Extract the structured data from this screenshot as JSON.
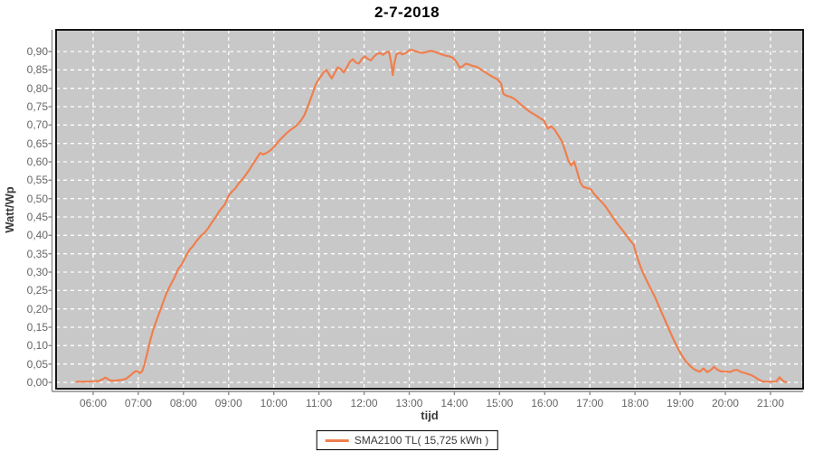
{
  "chart_data": {
    "type": "line",
    "title": "2-7-2018",
    "xlabel": "tijd",
    "ylabel": "Watt/Wp",
    "x_tick_labels": [
      "06:00",
      "07:00",
      "08:00",
      "09:00",
      "10:00",
      "11:00",
      "12:00",
      "13:00",
      "14:00",
      "15:00",
      "16:00",
      "17:00",
      "18:00",
      "19:00",
      "20:00",
      "21:00"
    ],
    "y_tick_labels": [
      "0,00",
      "0,05",
      "0,10",
      "0,15",
      "0,20",
      "0,25",
      "0,30",
      "0,35",
      "0,40",
      "0,45",
      "0,50",
      "0,55",
      "0,60",
      "0,65",
      "0,70",
      "0,75",
      "0,80",
      "0,85",
      "0,90"
    ],
    "xlim_hours": [
      5.179,
      21.723
    ],
    "ylim": [
      -0.0172,
      0.959
    ],
    "grid": {
      "style": "dashed",
      "horizontal": true,
      "vertical": true
    },
    "colors": {
      "plot_bg": "#C8C8C8",
      "grid": "#FFFFFF",
      "border": "#000000",
      "axis": "#8A8A8A",
      "tick_text": "#666666",
      "series": "#EF7F4E"
    },
    "legend": {
      "position": "bottom-center",
      "entries": [
        {
          "label": "SMA2100 TL( 15,725 kWh )",
          "color": "#EF7F4E"
        }
      ]
    },
    "series": [
      {
        "name": "SMA2100 TL( 15,725 kWh )",
        "color": "#EF7F4E",
        "points": [
          [
            "05:38",
            0.002
          ],
          [
            "05:48",
            0.002
          ],
          [
            "06:00",
            0.003
          ],
          [
            "06:08",
            0.004
          ],
          [
            "06:13",
            0.009
          ],
          [
            "06:16",
            0.013
          ],
          [
            "06:19",
            0.01
          ],
          [
            "06:23",
            0.005
          ],
          [
            "06:30",
            0.005
          ],
          [
            "06:38",
            0.007
          ],
          [
            "06:44",
            0.01
          ],
          [
            "06:50",
            0.02
          ],
          [
            "06:55",
            0.029
          ],
          [
            "06:59",
            0.031
          ],
          [
            "07:02",
            0.025
          ],
          [
            "07:05",
            0.03
          ],
          [
            "07:08",
            0.048
          ],
          [
            "07:12",
            0.08
          ],
          [
            "07:16",
            0.115
          ],
          [
            "07:20",
            0.145
          ],
          [
            "07:24",
            0.168
          ],
          [
            "07:28",
            0.19
          ],
          [
            "07:33",
            0.218
          ],
          [
            "07:38",
            0.245
          ],
          [
            "07:43",
            0.266
          ],
          [
            "07:48",
            0.285
          ],
          [
            "07:53",
            0.308
          ],
          [
            "07:58",
            0.322
          ],
          [
            "08:03",
            0.342
          ],
          [
            "08:08",
            0.36
          ],
          [
            "08:13",
            0.372
          ],
          [
            "08:18",
            0.386
          ],
          [
            "08:23",
            0.398
          ],
          [
            "08:28",
            0.407
          ],
          [
            "08:33",
            0.42
          ],
          [
            "08:38",
            0.436
          ],
          [
            "08:43",
            0.45
          ],
          [
            "08:47",
            0.464
          ],
          [
            "08:51",
            0.474
          ],
          [
            "08:55",
            0.484
          ],
          [
            "09:00",
            0.508
          ],
          [
            "09:05",
            0.52
          ],
          [
            "09:09",
            0.528
          ],
          [
            "09:13",
            0.54
          ],
          [
            "09:18",
            0.552
          ],
          [
            "09:23",
            0.565
          ],
          [
            "09:28",
            0.58
          ],
          [
            "09:33",
            0.596
          ],
          [
            "09:38",
            0.612
          ],
          [
            "09:42",
            0.624
          ],
          [
            "09:46",
            0.62
          ],
          [
            "09:51",
            0.625
          ],
          [
            "09:56",
            0.632
          ],
          [
            "10:01",
            0.642
          ],
          [
            "10:06",
            0.655
          ],
          [
            "10:11",
            0.666
          ],
          [
            "10:16",
            0.676
          ],
          [
            "10:21",
            0.685
          ],
          [
            "10:26",
            0.692
          ],
          [
            "10:31",
            0.7
          ],
          [
            "10:36",
            0.712
          ],
          [
            "10:41",
            0.728
          ],
          [
            "10:46",
            0.755
          ],
          [
            "10:51",
            0.782
          ],
          [
            "10:56",
            0.812
          ],
          [
            "11:01",
            0.828
          ],
          [
            "11:06",
            0.843
          ],
          [
            "11:10",
            0.85
          ],
          [
            "11:14",
            0.836
          ],
          [
            "11:17",
            0.827
          ],
          [
            "11:21",
            0.842
          ],
          [
            "11:25",
            0.857
          ],
          [
            "11:29",
            0.852
          ],
          [
            "11:33",
            0.843
          ],
          [
            "11:37",
            0.856
          ],
          [
            "11:41",
            0.872
          ],
          [
            "11:45",
            0.879
          ],
          [
            "11:49",
            0.87
          ],
          [
            "11:53",
            0.867
          ],
          [
            "11:57",
            0.88
          ],
          [
            "12:01",
            0.887
          ],
          [
            "12:05",
            0.88
          ],
          [
            "12:09",
            0.876
          ],
          [
            "12:13",
            0.886
          ],
          [
            "12:17",
            0.893
          ],
          [
            "12:21",
            0.896
          ],
          [
            "12:25",
            0.891
          ],
          [
            "12:29",
            0.897
          ],
          [
            "12:33",
            0.9
          ],
          [
            "12:36",
            0.87
          ],
          [
            "12:38",
            0.836
          ],
          [
            "12:40",
            0.865
          ],
          [
            "12:43",
            0.892
          ],
          [
            "12:47",
            0.897
          ],
          [
            "12:51",
            0.892
          ],
          [
            "12:55",
            0.896
          ],
          [
            "12:59",
            0.902
          ],
          [
            "13:03",
            0.905
          ],
          [
            "13:08",
            0.901
          ],
          [
            "13:13",
            0.898
          ],
          [
            "13:18",
            0.896
          ],
          [
            "13:23",
            0.899
          ],
          [
            "13:28",
            0.902
          ],
          [
            "13:33",
            0.9
          ],
          [
            "13:38",
            0.896
          ],
          [
            "13:43",
            0.892
          ],
          [
            "13:48",
            0.889
          ],
          [
            "13:53",
            0.887
          ],
          [
            "13:58",
            0.883
          ],
          [
            "14:03",
            0.871
          ],
          [
            "14:07",
            0.856
          ],
          [
            "14:11",
            0.86
          ],
          [
            "14:15",
            0.867
          ],
          [
            "14:19",
            0.865
          ],
          [
            "14:24",
            0.861
          ],
          [
            "14:29",
            0.859
          ],
          [
            "14:34",
            0.853
          ],
          [
            "14:39",
            0.846
          ],
          [
            "14:45",
            0.838
          ],
          [
            "14:51",
            0.831
          ],
          [
            "14:57",
            0.825
          ],
          [
            "15:02",
            0.813
          ],
          [
            "15:05",
            0.785
          ],
          [
            "15:09",
            0.78
          ],
          [
            "15:14",
            0.777
          ],
          [
            "15:19",
            0.772
          ],
          [
            "15:24",
            0.764
          ],
          [
            "15:29",
            0.754
          ],
          [
            "15:35",
            0.744
          ],
          [
            "15:41",
            0.735
          ],
          [
            "15:47",
            0.728
          ],
          [
            "15:53",
            0.72
          ],
          [
            "15:59",
            0.712
          ],
          [
            "16:04",
            0.69
          ],
          [
            "16:08",
            0.697
          ],
          [
            "16:13",
            0.688
          ],
          [
            "16:18",
            0.672
          ],
          [
            "16:23",
            0.655
          ],
          [
            "16:27",
            0.632
          ],
          [
            "16:31",
            0.605
          ],
          [
            "16:35",
            0.59
          ],
          [
            "16:39",
            0.601
          ],
          [
            "16:43",
            0.575
          ],
          [
            "16:47",
            0.545
          ],
          [
            "16:51",
            0.532
          ],
          [
            "16:56",
            0.529
          ],
          [
            "17:01",
            0.526
          ],
          [
            "17:06",
            0.512
          ],
          [
            "17:11",
            0.501
          ],
          [
            "17:16",
            0.49
          ],
          [
            "17:21",
            0.478
          ],
          [
            "17:26",
            0.463
          ],
          [
            "17:31",
            0.448
          ],
          [
            "17:36",
            0.433
          ],
          [
            "17:41",
            0.42
          ],
          [
            "17:46",
            0.407
          ],
          [
            "17:52",
            0.39
          ],
          [
            "17:58",
            0.375
          ],
          [
            "18:03",
            0.34
          ],
          [
            "18:08",
            0.31
          ],
          [
            "18:14",
            0.283
          ],
          [
            "18:20",
            0.258
          ],
          [
            "18:26",
            0.234
          ],
          [
            "18:32",
            0.206
          ],
          [
            "18:38",
            0.178
          ],
          [
            "18:44",
            0.15
          ],
          [
            "18:50",
            0.122
          ],
          [
            "18:56",
            0.097
          ],
          [
            "19:02",
            0.074
          ],
          [
            "19:08",
            0.056
          ],
          [
            "19:14",
            0.043
          ],
          [
            "19:20",
            0.034
          ],
          [
            "19:26",
            0.029
          ],
          [
            "19:31",
            0.038
          ],
          [
            "19:36",
            0.028
          ],
          [
            "19:41",
            0.034
          ],
          [
            "19:45",
            0.043
          ],
          [
            "19:49",
            0.035
          ],
          [
            "19:54",
            0.03
          ],
          [
            "20:00",
            0.03
          ],
          [
            "20:06",
            0.028
          ],
          [
            "20:11",
            0.033
          ],
          [
            "20:16",
            0.034
          ],
          [
            "20:21",
            0.028
          ],
          [
            "20:27",
            0.025
          ],
          [
            "20:33",
            0.021
          ],
          [
            "20:39",
            0.015
          ],
          [
            "20:44",
            0.008
          ],
          [
            "20:49",
            0.003
          ],
          [
            "20:56",
            0.002
          ],
          [
            "21:03",
            0.002
          ],
          [
            "21:08",
            0.003
          ],
          [
            "21:12",
            0.014
          ],
          [
            "21:15",
            0.008
          ],
          [
            "21:18",
            0.002
          ],
          [
            "21:21",
            0.001
          ]
        ]
      }
    ]
  }
}
